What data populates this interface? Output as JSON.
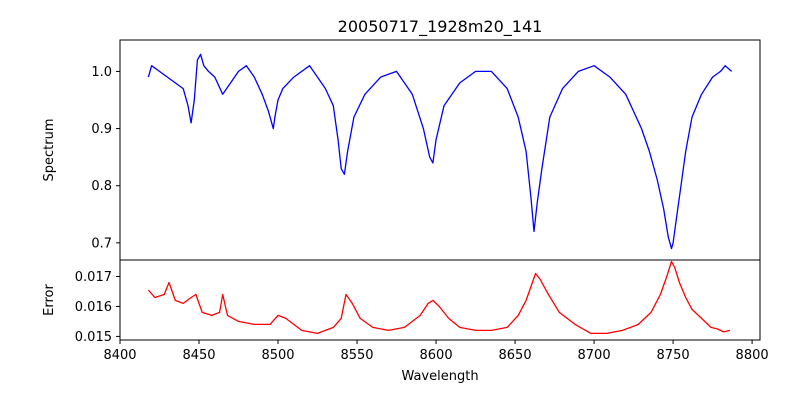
{
  "chart_data": {
    "type": "line",
    "title": "20050717_1928m20_141",
    "xlabel": "Wavelength",
    "x_ticks": [
      8400,
      8450,
      8500,
      8550,
      8600,
      8650,
      8700,
      8750,
      8800
    ],
    "xlim": [
      8400,
      8805
    ],
    "grid": false,
    "panels": [
      {
        "ylabel": "Spectrum",
        "ylim": [
          0.67,
          1.055
        ],
        "y_ticks": [
          0.7,
          0.8,
          0.9,
          1.0
        ],
        "y_tick_labels": [
          "0.7",
          "0.8",
          "0.9",
          "1.0"
        ],
        "series": [
          {
            "color": "#0000ff",
            "x": [
              8418,
              8420,
              8425,
              8430,
              8435,
              8440,
              8443,
              8445,
              8447,
              8449,
              8451,
              8453,
              8456,
              8460,
              8465,
              8470,
              8475,
              8480,
              8485,
              8490,
              8494,
              8497,
              8498,
              8500,
              8503,
              8510,
              8520,
              8525,
              8530,
              8535,
              8538,
              8540,
              8542,
              8544,
              8548,
              8555,
              8565,
              8575,
              8585,
              8592,
              8596,
              8598,
              8600,
              8605,
              8615,
              8625,
              8635,
              8645,
              8652,
              8657,
              8660,
              8662,
              8664,
              8667,
              8672,
              8680,
              8690,
              8700,
              8710,
              8720,
              8725,
              8730,
              8735,
              8740,
              8744,
              8747,
              8749,
              8750,
              8752,
              8755,
              8758,
              8762,
              8768,
              8775,
              8780,
              8783,
              8787
            ],
            "y": [
              0.99,
              1.01,
              1.0,
              0.99,
              0.98,
              0.97,
              0.94,
              0.91,
              0.95,
              1.02,
              1.03,
              1.01,
              1.0,
              0.99,
              0.96,
              0.98,
              1.0,
              1.01,
              0.99,
              0.96,
              0.93,
              0.9,
              0.92,
              0.95,
              0.97,
              0.99,
              1.01,
              0.99,
              0.97,
              0.94,
              0.88,
              0.83,
              0.82,
              0.86,
              0.92,
              0.96,
              0.99,
              1.0,
              0.96,
              0.9,
              0.85,
              0.84,
              0.88,
              0.94,
              0.98,
              1.0,
              1.0,
              0.97,
              0.92,
              0.86,
              0.78,
              0.72,
              0.77,
              0.83,
              0.92,
              0.97,
              1.0,
              1.01,
              0.99,
              0.96,
              0.93,
              0.9,
              0.86,
              0.81,
              0.76,
              0.71,
              0.69,
              0.7,
              0.74,
              0.8,
              0.86,
              0.92,
              0.96,
              0.99,
              1.0,
              1.01,
              1.0
            ]
          }
        ]
      },
      {
        "ylabel": "Error",
        "ylim": [
          0.01488,
          0.01755
        ],
        "y_ticks": [
          0.015,
          0.016,
          0.017
        ],
        "y_tick_labels": [
          "0.015",
          "0.016",
          "0.017"
        ],
        "series": [
          {
            "color": "#ff0000",
            "x": [
              8418,
              8422,
              8428,
              8431,
              8435,
              8440,
              8445,
              8448,
              8452,
              8458,
              8463,
              8465,
              8468,
              8475,
              8485,
              8495,
              8500,
              8505,
              8515,
              8525,
              8535,
              8540,
              8543,
              8547,
              8552,
              8560,
              8570,
              8580,
              8590,
              8595,
              8598,
              8602,
              8608,
              8615,
              8625,
              8635,
              8645,
              8652,
              8657,
              8661,
              8663,
              8666,
              8670,
              8678,
              8688,
              8698,
              8708,
              8718,
              8728,
              8736,
              8742,
              8746,
              8749,
              8751,
              8754,
              8758,
              8762,
              8766,
              8770,
              8774,
              8778,
              8782,
              8786
            ],
            "y": [
              0.01655,
              0.0163,
              0.0164,
              0.0168,
              0.0162,
              0.0161,
              0.0163,
              0.0164,
              0.0158,
              0.0157,
              0.0158,
              0.0164,
              0.0157,
              0.0155,
              0.0154,
              0.0154,
              0.0157,
              0.0156,
              0.0152,
              0.0151,
              0.0153,
              0.0156,
              0.0164,
              0.0161,
              0.0156,
              0.0153,
              0.0152,
              0.0153,
              0.0157,
              0.0161,
              0.0162,
              0.016,
              0.0156,
              0.0153,
              0.0152,
              0.0152,
              0.0153,
              0.0157,
              0.0162,
              0.0168,
              0.0171,
              0.0169,
              0.0165,
              0.0158,
              0.0154,
              0.0151,
              0.0151,
              0.0152,
              0.0154,
              0.0158,
              0.0164,
              0.017,
              0.0175,
              0.0173,
              0.0168,
              0.0163,
              0.0159,
              0.0157,
              0.0155,
              0.0153,
              0.01525,
              0.01515,
              0.0152
            ]
          }
        ]
      }
    ]
  }
}
